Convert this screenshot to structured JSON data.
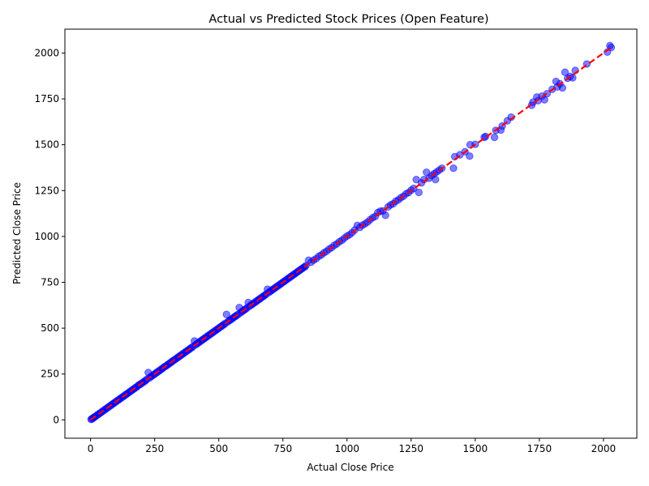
{
  "chart_data": {
    "type": "scatter",
    "title": "Actual vs Predicted Stock Prices (Open Feature)",
    "xlabel": "Actual Close Price",
    "ylabel": "Predicted Close Price",
    "xlim": [
      -100,
      2130
    ],
    "ylim": [
      -100,
      2130
    ],
    "xticks": [
      0,
      250,
      500,
      750,
      1000,
      1250,
      1500,
      1750,
      2000
    ],
    "yticks": [
      0,
      250,
      500,
      750,
      1000,
      1250,
      1500,
      1750,
      2000
    ],
    "grid": false,
    "point_color": "#0000ff",
    "point_opacity": 0.5,
    "reference_line": {
      "style": "dashed",
      "color": "#ff0000",
      "from": [
        0,
        0
      ],
      "to": [
        2030,
        2030
      ]
    },
    "series": [
      {
        "points": [
          [
            2,
            3
          ],
          [
            5,
            4
          ],
          [
            8,
            9
          ],
          [
            12,
            11
          ],
          [
            15,
            16
          ],
          [
            20,
            19
          ],
          [
            25,
            26
          ],
          [
            30,
            29
          ],
          [
            35,
            36
          ],
          [
            40,
            39
          ],
          [
            45,
            46
          ],
          [
            50,
            49
          ],
          [
            55,
            56
          ],
          [
            60,
            59
          ],
          [
            65,
            66
          ],
          [
            70,
            69
          ],
          [
            75,
            76
          ],
          [
            80,
            79
          ],
          [
            85,
            86
          ],
          [
            90,
            89
          ],
          [
            95,
            96
          ],
          [
            100,
            99
          ],
          [
            105,
            106
          ],
          [
            110,
            109
          ],
          [
            115,
            116
          ],
          [
            120,
            119
          ],
          [
            125,
            126
          ],
          [
            130,
            129
          ],
          [
            135,
            136
          ],
          [
            140,
            139
          ],
          [
            145,
            146
          ],
          [
            150,
            149
          ],
          [
            155,
            156
          ],
          [
            160,
            159
          ],
          [
            165,
            166
          ],
          [
            170,
            169
          ],
          [
            175,
            176
          ],
          [
            180,
            179
          ],
          [
            185,
            186
          ],
          [
            190,
            192
          ],
          [
            195,
            194
          ],
          [
            200,
            201
          ],
          [
            205,
            204
          ],
          [
            210,
            211
          ],
          [
            215,
            214
          ],
          [
            220,
            222
          ],
          [
            225,
            258
          ],
          [
            230,
            229
          ],
          [
            235,
            236
          ],
          [
            240,
            239
          ],
          [
            245,
            246
          ],
          [
            250,
            249
          ],
          [
            255,
            256
          ],
          [
            260,
            259
          ],
          [
            265,
            266
          ],
          [
            270,
            269
          ],
          [
            275,
            276
          ],
          [
            280,
            279
          ],
          [
            285,
            286
          ],
          [
            290,
            291
          ],
          [
            295,
            294
          ],
          [
            300,
            301
          ],
          [
            305,
            304
          ],
          [
            310,
            311
          ],
          [
            315,
            314
          ],
          [
            320,
            322
          ],
          [
            325,
            324
          ],
          [
            330,
            331
          ],
          [
            335,
            334
          ],
          [
            340,
            341
          ],
          [
            345,
            344
          ],
          [
            350,
            351
          ],
          [
            355,
            354
          ],
          [
            360,
            361
          ],
          [
            365,
            364
          ],
          [
            370,
            371
          ],
          [
            375,
            374
          ],
          [
            380,
            381
          ],
          [
            385,
            384
          ],
          [
            390,
            391
          ],
          [
            395,
            394
          ],
          [
            400,
            401
          ],
          [
            405,
            430
          ],
          [
            410,
            409
          ],
          [
            415,
            416
          ],
          [
            420,
            419
          ],
          [
            425,
            426
          ],
          [
            430,
            429
          ],
          [
            435,
            436
          ],
          [
            440,
            439
          ],
          [
            445,
            446
          ],
          [
            450,
            449
          ],
          [
            455,
            456
          ],
          [
            460,
            459
          ],
          [
            465,
            466
          ],
          [
            470,
            469
          ],
          [
            475,
            476
          ],
          [
            480,
            479
          ],
          [
            485,
            486
          ],
          [
            490,
            489
          ],
          [
            495,
            496
          ],
          [
            500,
            499
          ],
          [
            505,
            506
          ],
          [
            510,
            509
          ],
          [
            515,
            516
          ],
          [
            520,
            519
          ],
          [
            525,
            526
          ],
          [
            530,
            575
          ],
          [
            535,
            534
          ],
          [
            540,
            541
          ],
          [
            545,
            544
          ],
          [
            550,
            551
          ],
          [
            555,
            554
          ],
          [
            560,
            561
          ],
          [
            565,
            564
          ],
          [
            570,
            571
          ],
          [
            575,
            574
          ],
          [
            580,
            612
          ],
          [
            585,
            584
          ],
          [
            590,
            591
          ],
          [
            595,
            594
          ],
          [
            600,
            601
          ],
          [
            605,
            604
          ],
          [
            610,
            611
          ],
          [
            615,
            640
          ],
          [
            620,
            619
          ],
          [
            625,
            626
          ],
          [
            630,
            629
          ],
          [
            635,
            636
          ],
          [
            640,
            639
          ],
          [
            645,
            646
          ],
          [
            650,
            649
          ],
          [
            655,
            656
          ],
          [
            660,
            659
          ],
          [
            665,
            666
          ],
          [
            670,
            669
          ],
          [
            675,
            676
          ],
          [
            680,
            679
          ],
          [
            685,
            686
          ],
          [
            690,
            712
          ],
          [
            695,
            694
          ],
          [
            700,
            701
          ],
          [
            705,
            704
          ],
          [
            710,
            711
          ],
          [
            715,
            714
          ],
          [
            720,
            721
          ],
          [
            725,
            724
          ],
          [
            730,
            731
          ],
          [
            735,
            734
          ],
          [
            740,
            741
          ],
          [
            745,
            744
          ],
          [
            750,
            751
          ],
          [
            755,
            754
          ],
          [
            760,
            761
          ],
          [
            765,
            764
          ],
          [
            770,
            771
          ],
          [
            775,
            774
          ],
          [
            780,
            781
          ],
          [
            785,
            784
          ],
          [
            790,
            791
          ],
          [
            795,
            794
          ],
          [
            800,
            801
          ],
          [
            805,
            804
          ],
          [
            810,
            811
          ],
          [
            815,
            814
          ],
          [
            820,
            821
          ],
          [
            825,
            824
          ],
          [
            830,
            831
          ],
          [
            835,
            834
          ],
          [
            840,
            841
          ],
          [
            850,
            870
          ],
          [
            860,
            859
          ],
          [
            870,
            871
          ],
          [
            880,
            879
          ],
          [
            890,
            892
          ],
          [
            900,
            899
          ],
          [
            910,
            911
          ],
          [
            920,
            919
          ],
          [
            930,
            931
          ],
          [
            940,
            939
          ],
          [
            950,
            951
          ],
          [
            960,
            959
          ],
          [
            970,
            971
          ],
          [
            980,
            979
          ],
          [
            990,
            991
          ],
          [
            1000,
            1002
          ],
          [
            1010,
            1009
          ],
          [
            1020,
            1021
          ],
          [
            1030,
            1035
          ],
          [
            1040,
            1060
          ],
          [
            1050,
            1049
          ],
          [
            1060,
            1061
          ],
          [
            1070,
            1069
          ],
          [
            1080,
            1078
          ],
          [
            1090,
            1091
          ],
          [
            1100,
            1102
          ],
          [
            1110,
            1109
          ],
          [
            1120,
            1130
          ],
          [
            1130,
            1138
          ],
          [
            1140,
            1139
          ],
          [
            1150,
            1115
          ],
          [
            1160,
            1161
          ],
          [
            1170,
            1172
          ],
          [
            1180,
            1178
          ],
          [
            1190,
            1192
          ],
          [
            1200,
            1199
          ],
          [
            1210,
            1211
          ],
          [
            1220,
            1219
          ],
          [
            1230,
            1232
          ],
          [
            1240,
            1239
          ],
          [
            1250,
            1252
          ],
          [
            1260,
            1262
          ],
          [
            1270,
            1310
          ],
          [
            1280,
            1240
          ],
          [
            1290,
            1292
          ],
          [
            1300,
            1310
          ],
          [
            1310,
            1350
          ],
          [
            1320,
            1318
          ],
          [
            1330,
            1332
          ],
          [
            1340,
            1342
          ],
          [
            1345,
            1310
          ],
          [
            1350,
            1352
          ],
          [
            1360,
            1362
          ],
          [
            1370,
            1372
          ],
          [
            1415,
            1372
          ],
          [
            1420,
            1435
          ],
          [
            1440,
            1445
          ],
          [
            1460,
            1462
          ],
          [
            1480,
            1500
          ],
          [
            1478,
            1438
          ],
          [
            1500,
            1502
          ],
          [
            1535,
            1540
          ],
          [
            1540,
            1545
          ],
          [
            1575,
            1540
          ],
          [
            1580,
            1578
          ],
          [
            1600,
            1580
          ],
          [
            1605,
            1602
          ],
          [
            1625,
            1630
          ],
          [
            1640,
            1650
          ],
          [
            1720,
            1715
          ],
          [
            1725,
            1732
          ],
          [
            1740,
            1760
          ],
          [
            1745,
            1740
          ],
          [
            1760,
            1765
          ],
          [
            1770,
            1745
          ],
          [
            1780,
            1778
          ],
          [
            1800,
            1802
          ],
          [
            1815,
            1845
          ],
          [
            1820,
            1815
          ],
          [
            1830,
            1832
          ],
          [
            1840,
            1810
          ],
          [
            1850,
            1895
          ],
          [
            1860,
            1862
          ],
          [
            1870,
            1872
          ],
          [
            1880,
            1865
          ],
          [
            1890,
            1905
          ],
          [
            1935,
            1940
          ],
          [
            2015,
            2005
          ],
          [
            2025,
            2040
          ],
          [
            2030,
            2030
          ]
        ]
      }
    ]
  }
}
